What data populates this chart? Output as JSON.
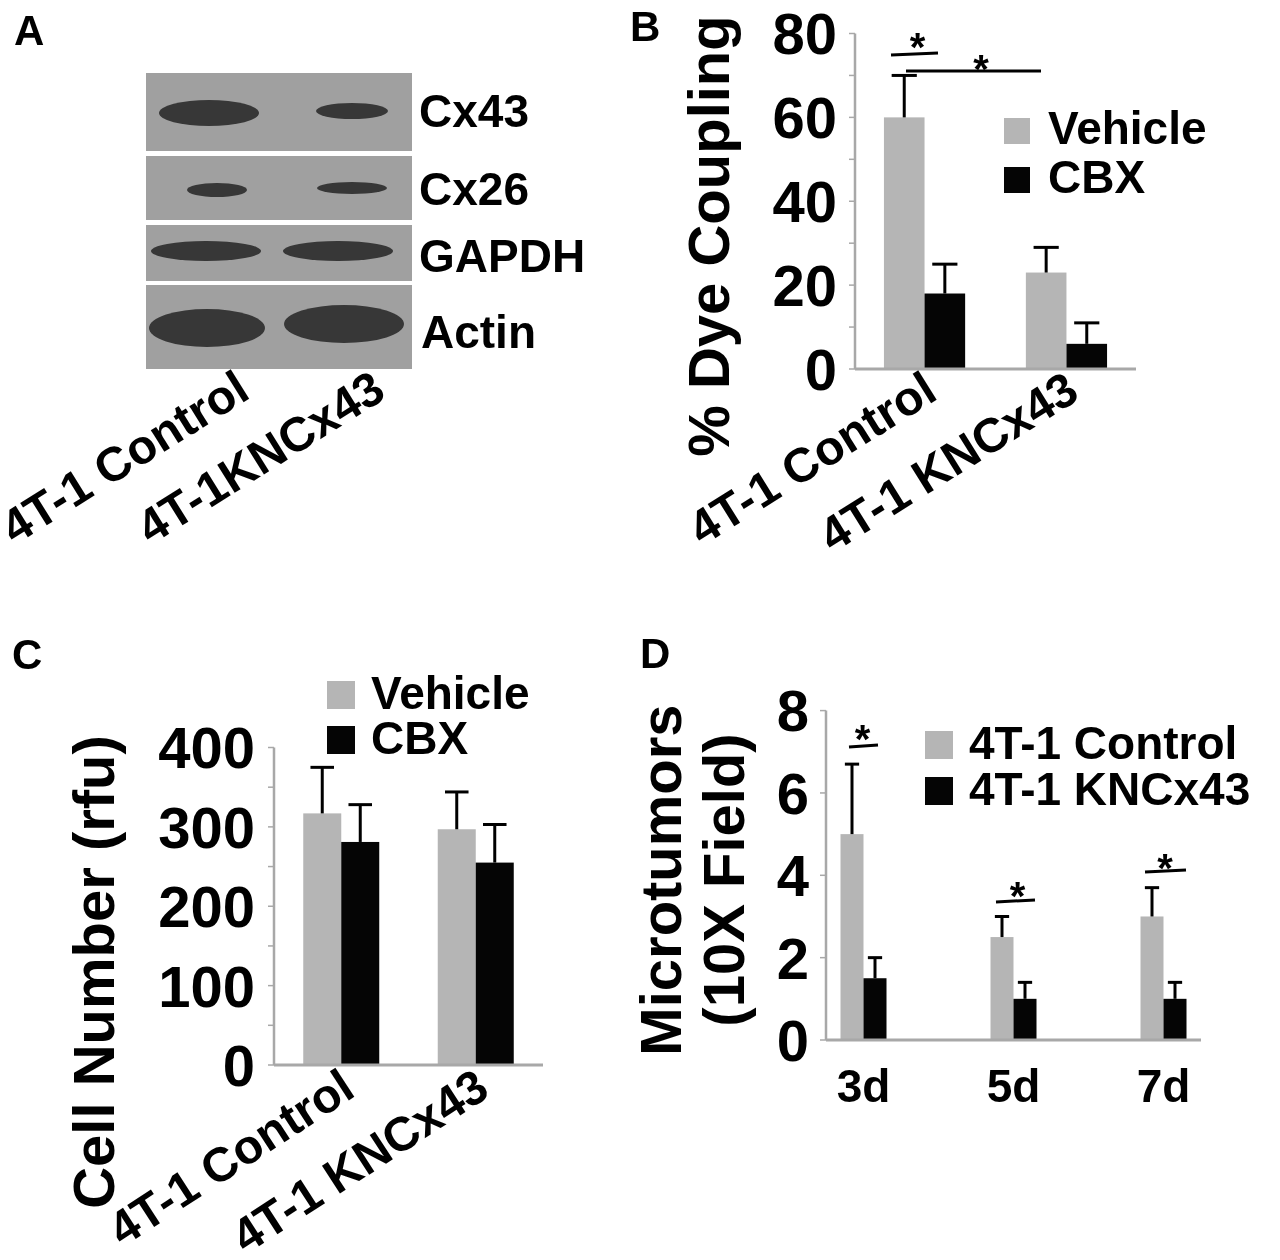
{
  "chart_data": [
    {
      "type": "other",
      "title": "A",
      "annotations": [
        "Cx43",
        "Cx26",
        "GAPDH",
        "Actin",
        "4T-1 Control",
        "4T-1KNCx43"
      ]
    },
    {
      "type": "bar",
      "title": "B",
      "ylabel": "% Dye Coupling",
      "categories": [
        "4T-1 Control",
        "4T-1 KNCx43"
      ],
      "series": [
        {
          "name": "Vehicle",
          "color": "#b5b5b5",
          "values": [
            60,
            23
          ],
          "errors": [
            [
              60,
              70
            ],
            [
              23,
              29
            ]
          ]
        },
        {
          "name": "CBX",
          "color": "#050505",
          "values": [
            18,
            6
          ],
          "errors": [
            [
              18,
              25
            ],
            [
              6,
              11
            ]
          ]
        }
      ],
      "ylim": [
        0,
        80
      ],
      "yticks": [
        0,
        {
          "value": 10,
          "label": null
        },
        20,
        {
          "value": 30,
          "label": null
        },
        40,
        {
          "value": 50,
          "label": null
        },
        60,
        {
          "value": 70,
          "label": null
        },
        80
      ],
      "legend": "top right",
      "annotations": [
        "*",
        "*"
      ]
    },
    {
      "type": "bar",
      "title": "C",
      "ylabel": "Cell Number (rfu)",
      "categories": [
        "4T-1 Control",
        "4T-1 KNCx43"
      ],
      "series": [
        {
          "name": "Vehicle",
          "color": "#b5b5b5",
          "values": [
            317,
            297
          ],
          "errors": [
            [
              317,
              375
            ],
            [
              297,
              344
            ]
          ]
        },
        {
          "name": "CBX",
          "color": "#050505",
          "values": [
            281,
            255
          ],
          "errors": [
            [
              281,
              328
            ],
            [
              255,
              303
            ]
          ]
        }
      ],
      "ylim": [
        0,
        400
      ],
      "yticks": [
        0,
        {
          "value": 50,
          "label": null
        },
        100,
        {
          "value": 150,
          "label": null
        },
        200,
        {
          "value": 250,
          "label": null
        },
        300,
        {
          "value": 350,
          "label": null
        },
        400
      ],
      "legend": "top right"
    },
    {
      "type": "bar",
      "title": "D",
      "ylabel": "Microtumors (10X Field)",
      "categories": [
        "3d",
        "5d",
        "7d"
      ],
      "series": [
        {
          "name": "4T-1 Control",
          "color": "#b5b5b5",
          "values": [
            5,
            2.5,
            3
          ],
          "errors": [
            [
              5,
              6.7
            ],
            [
              2.5,
              3
            ],
            [
              3,
              3.7
            ]
          ]
        },
        {
          "name": "4T-1 KNCx43",
          "color": "#050505",
          "values": [
            1.5,
            1,
            1
          ],
          "errors": [
            [
              1.5,
              2
            ],
            [
              1,
              1.4
            ],
            [
              1,
              1.4
            ]
          ]
        }
      ],
      "ylim": [
        0,
        8
      ],
      "yticks": [
        0,
        2,
        4,
        6,
        8
      ],
      "legend": "top right",
      "annotations": [
        "*",
        "*",
        "*"
      ]
    }
  ]
}
